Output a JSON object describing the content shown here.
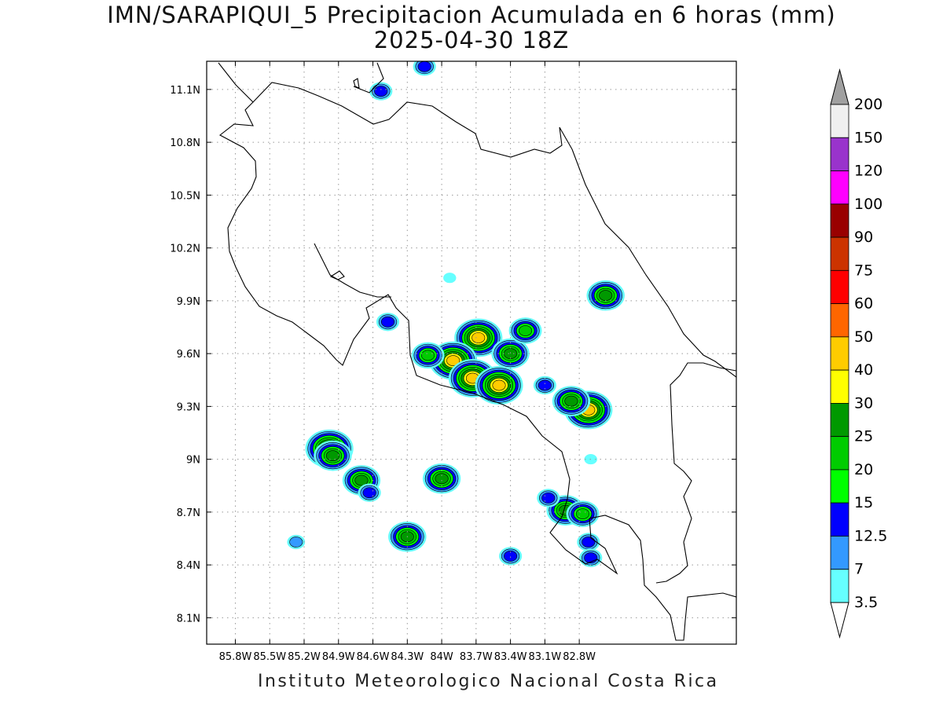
{
  "title": "IMN/SARAPIQUI_5 Precipitacion Acumulada en 6 horas (mm)",
  "subtitle": "2025-04-30 18Z",
  "footer": "Instituto Meteorologico Nacional Costa Rica",
  "map": {
    "lon_range": [
      -86.05,
      -81.43
    ],
    "lat_range": [
      7.95,
      11.26
    ],
    "lon_ticks": [
      "85.8W",
      "85.5W",
      "85.2W",
      "84.9W",
      "84.6W",
      "84.3W",
      "84W",
      "83.7W",
      "83.4W",
      "83.1W",
      "82.8W"
    ],
    "lat_ticks": [
      "11.1N",
      "10.8N",
      "10.5N",
      "10.2N",
      "9.9N",
      "9.6N",
      "9.3N",
      "9N",
      "8.7N",
      "8.4N",
      "8.1N"
    ],
    "grid": true
  },
  "legend": {
    "values": [
      "200",
      "150",
      "120",
      "100",
      "90",
      "75",
      "60",
      "50",
      "40",
      "30",
      "25",
      "20",
      "15",
      "12.5",
      "7",
      "3.5"
    ],
    "colors": [
      "#f0f0f0",
      "#9933cc",
      "#ff00ff",
      "#990000",
      "#cc3300",
      "#ff0000",
      "#ff6600",
      "#ffcc00",
      "#ffff00",
      "#009900",
      "#00cc00",
      "#00ff00",
      "#0000ff",
      "#3399ff",
      "#66ffff"
    ],
    "top_arrow_color": "#a0a0a0",
    "bottom_arrow_color": "#ffffff"
  },
  "precip_cells": [
    {
      "lon": -84.98,
      "lat": 9.06,
      "peak": 40
    },
    {
      "lon": -84.95,
      "lat": 9.02,
      "peak": 25
    },
    {
      "lon": -84.7,
      "lat": 8.88,
      "peak": 25
    },
    {
      "lon": -84.3,
      "lat": 8.56,
      "peak": 25
    },
    {
      "lon": -84.0,
      "lat": 8.89,
      "peak": 25
    },
    {
      "lon": -85.27,
      "lat": 8.53,
      "peak": 7
    },
    {
      "lon": -84.63,
      "lat": 8.81,
      "peak": 12.5
    },
    {
      "lon": -83.68,
      "lat": 9.69,
      "peak": 40
    },
    {
      "lon": -83.9,
      "lat": 9.56,
      "peak": 40
    },
    {
      "lon": -83.73,
      "lat": 9.46,
      "peak": 40
    },
    {
      "lon": -83.5,
      "lat": 9.42,
      "peak": 40
    },
    {
      "lon": -83.4,
      "lat": 9.6,
      "peak": 25
    },
    {
      "lon": -83.27,
      "lat": 9.73,
      "peak": 20
    },
    {
      "lon": -84.12,
      "lat": 9.59,
      "peak": 20
    },
    {
      "lon": -84.47,
      "lat": 9.78,
      "peak": 12.5
    },
    {
      "lon": -83.93,
      "lat": 10.03,
      "peak": 3.5
    },
    {
      "lon": -82.72,
      "lat": 9.28,
      "peak": 40
    },
    {
      "lon": -82.87,
      "lat": 9.33,
      "peak": 25
    },
    {
      "lon": -82.92,
      "lat": 8.71,
      "peak": 25
    },
    {
      "lon": -82.77,
      "lat": 8.69,
      "peak": 20
    },
    {
      "lon": -82.72,
      "lat": 8.53,
      "peak": 12.5
    },
    {
      "lon": -82.7,
      "lat": 8.44,
      "peak": 12.5
    },
    {
      "lon": -83.07,
      "lat": 8.78,
      "peak": 12.5
    },
    {
      "lon": -83.4,
      "lat": 8.45,
      "peak": 12.5
    },
    {
      "lon": -83.1,
      "lat": 9.42,
      "peak": 12.5
    },
    {
      "lon": -82.57,
      "lat": 9.93,
      "peak": 25
    },
    {
      "lon": -84.53,
      "lat": 11.09,
      "peak": 12.5
    },
    {
      "lon": -84.15,
      "lat": 11.23,
      "peak": 12.5
    },
    {
      "lon": -82.7,
      "lat": 9.0,
      "peak": 3.5
    }
  ]
}
